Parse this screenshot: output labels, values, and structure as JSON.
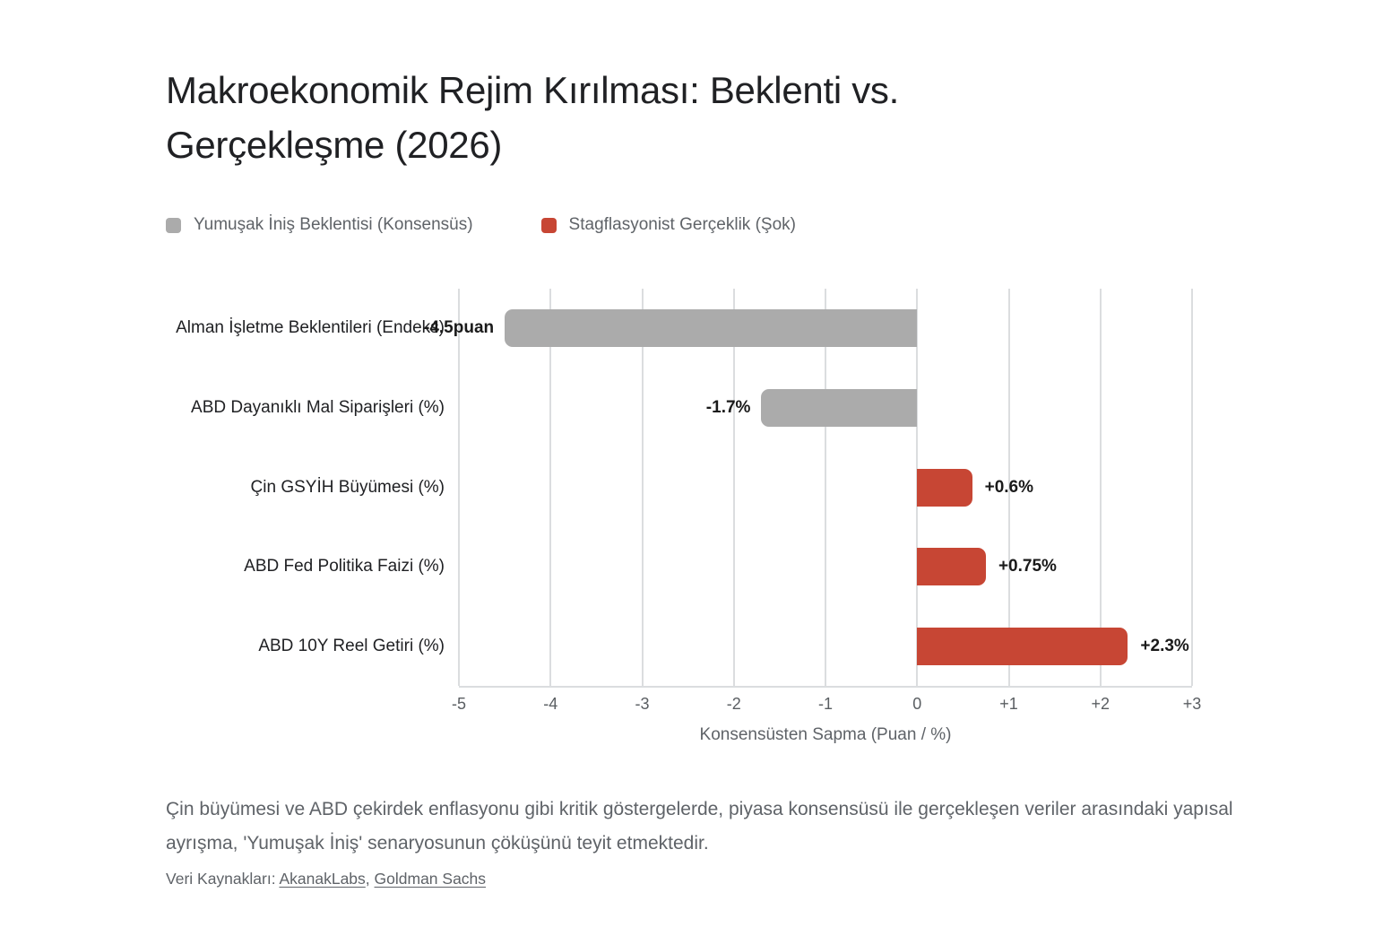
{
  "header": {
    "title": "Makroekonomik Rejim Kırılması: Beklenti vs. Gerçekleşme (2026)"
  },
  "legend": [
    {
      "label": "Yumuşak İniş Beklentisi (Konsensüs)",
      "color": "#ABABAB"
    },
    {
      "label": "Stagflasyonist Gerçeklik (Şok)",
      "color": "#C74634"
    }
  ],
  "chart_data": {
    "type": "bar",
    "orientation": "horizontal",
    "title": "Makroekonomik Rejim Kırılması: Beklenti vs. Gerçekleşme (2026)",
    "categories": [
      "Alman İşletme Beklentileri (Endeks)",
      "ABD Dayanıklı Mal Siparişleri (%)",
      "Çin GSYİH Büyümesi (%)",
      "ABD Fed Politika Faizi (%)",
      "ABD 10Y Reel Getiri (%)"
    ],
    "values": [
      -4.5,
      -1.7,
      0.6,
      0.75,
      2.3
    ],
    "value_labels": [
      "-4.5puan",
      "-1.7%",
      "+0.6%",
      "+0.75%",
      "+2.3%"
    ],
    "series": [
      {
        "name": "Yumuşak İniş Beklentisi (Konsensüs)",
        "color": "#ABABAB",
        "applies_to": "negative deviations"
      },
      {
        "name": "Stagflasyonist Gerçeklik (Şok)",
        "color": "#C74634",
        "applies_to": "positive deviations"
      }
    ],
    "xlabel": "Konsensüsten Sapma (Puan / %)",
    "xlim": [
      -5,
      3
    ],
    "xtick_values": [
      -5,
      -4,
      -3,
      -2,
      -1,
      0,
      1,
      2,
      3
    ],
    "xtick_labels": [
      "-5",
      "-4",
      "-3",
      "-2",
      "-1",
      "0",
      "+1",
      "+2",
      "+3"
    ],
    "grid": "vertical gridlines on",
    "legend_position": "top-left",
    "colors": {
      "negative": "#ABABAB",
      "positive": "#C74634",
      "gridline": "#DBDDDF"
    }
  },
  "footer": {
    "caption": "Çin büyümesi ve ABD çekirdek enflasyonu gibi kritik göstergelerde, piyasa konsensüsü ile gerçekleşen veriler arasındaki yapısal ayrışma, 'Yumuşak İniş' senaryosunun çöküşünü teyit etmektedir.",
    "sources_label": "Veri Kaynakları:",
    "sources": [
      "AkanakLabs",
      "Goldman Sachs"
    ],
    "sources_separator": ", "
  }
}
